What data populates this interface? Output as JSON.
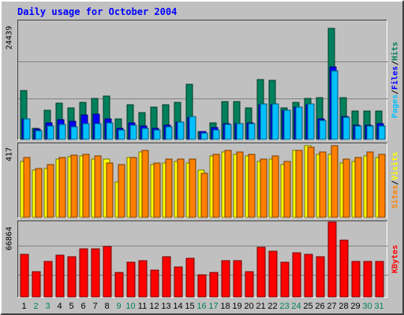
{
  "title": "Daily usage for October 2004",
  "colors": {
    "background": "#c0c0c0",
    "title": "#0000ff",
    "gridline": "#808080",
    "hits": "#00805c",
    "files": "#0000ff",
    "pages": "#00c0ff",
    "sites": "#ff8000",
    "visits": "#ffff00",
    "kbytes": "#ff0000",
    "weekday_label": "#000000",
    "weekend_label": "#00805c"
  },
  "y_max_labels": {
    "hits": "24439",
    "sites": "417",
    "kbytes": "66864"
  },
  "legends": {
    "pages": "Pages",
    "files": "Files",
    "hits": "Hits",
    "sites": "Sites",
    "visits": "Visits",
    "kbytes": "KBytes",
    "separator": " / "
  },
  "chart_data": [
    {
      "type": "bar",
      "title": "Daily usage for October 2004",
      "categories": [
        "1",
        "2",
        "3",
        "4",
        "5",
        "6",
        "7",
        "8",
        "9",
        "10",
        "11",
        "12",
        "13",
        "14",
        "15",
        "16",
        "17",
        "18",
        "19",
        "20",
        "21",
        "22",
        "23",
        "24",
        "25",
        "26",
        "27",
        "28",
        "29",
        "30",
        "31"
      ],
      "weekend_days": [
        "2",
        "3",
        "9",
        "10",
        "16",
        "17",
        "23",
        "24",
        "30",
        "31"
      ],
      "ylim": [
        0,
        24439
      ],
      "grid": true,
      "legend_position": "right",
      "series": [
        {
          "name": "Hits",
          "values": [
            10100,
            2200,
            6100,
            7500,
            6500,
            7700,
            8400,
            8900,
            4300,
            7100,
            5500,
            6600,
            7100,
            7700,
            11400,
            1600,
            3500,
            7800,
            7800,
            6500,
            12400,
            12300,
            6500,
            7600,
            8400,
            8600,
            23000,
            8600,
            5900,
            5900,
            5800
          ]
        },
        {
          "name": "Files",
          "values": [
            4300,
            2100,
            3500,
            4000,
            3800,
            5000,
            5200,
            4200,
            2200,
            3500,
            2800,
            2200,
            3000,
            3600,
            4600,
            1600,
            2400,
            3300,
            3300,
            3500,
            7100,
            7200,
            6000,
            6600,
            7200,
            4200,
            15000,
            4700,
            3000,
            3000,
            3200
          ]
        },
        {
          "name": "Pages",
          "values": [
            4300,
            1800,
            2700,
            3100,
            2600,
            3200,
            3300,
            3400,
            1900,
            2900,
            2200,
            2000,
            2600,
            3600,
            4700,
            1300,
            2000,
            3100,
            3200,
            3200,
            7300,
            7300,
            6000,
            6700,
            7300,
            3900,
            14100,
            4600,
            2700,
            2700,
            2800
          ]
        }
      ]
    },
    {
      "type": "bar",
      "categories": [
        "1",
        "2",
        "3",
        "4",
        "5",
        "6",
        "7",
        "8",
        "9",
        "10",
        "11",
        "12",
        "13",
        "14",
        "15",
        "16",
        "17",
        "18",
        "19",
        "20",
        "21",
        "22",
        "23",
        "24",
        "25",
        "26",
        "27",
        "28",
        "29",
        "30",
        "31"
      ],
      "ylim": [
        0,
        417
      ],
      "grid": false,
      "legend_position": "right",
      "series": [
        {
          "name": "Visits",
          "values": [
            320,
            270,
            280,
            330,
            345,
            350,
            330,
            330,
            200,
            340,
            370,
            300,
            310,
            320,
            310,
            270,
            350,
            370,
            360,
            350,
            320,
            330,
            300,
            380,
            410,
            360,
            360,
            310,
            320,
            350,
            340
          ]
        },
        {
          "name": "Sites",
          "values": [
            340,
            280,
            300,
            340,
            355,
            360,
            350,
            310,
            300,
            340,
            380,
            310,
            330,
            330,
            330,
            250,
            360,
            380,
            370,
            360,
            330,
            350,
            320,
            380,
            400,
            370,
            410,
            330,
            340,
            370,
            360
          ]
        }
      ]
    },
    {
      "type": "bar",
      "categories": [
        "1",
        "2",
        "3",
        "4",
        "5",
        "6",
        "7",
        "8",
        "9",
        "10",
        "11",
        "12",
        "13",
        "14",
        "15",
        "16",
        "17",
        "18",
        "19",
        "20",
        "21",
        "22",
        "23",
        "24",
        "25",
        "26",
        "27",
        "28",
        "29",
        "30",
        "31"
      ],
      "ylim": [
        0,
        66864
      ],
      "grid": true,
      "legend_position": "right",
      "series": [
        {
          "name": "KBytes",
          "values": [
            37800,
            22400,
            31700,
            37000,
            36100,
            43200,
            42700,
            45200,
            22100,
            31200,
            32200,
            23800,
            36000,
            26700,
            34500,
            19400,
            21700,
            32300,
            32300,
            22600,
            44500,
            40800,
            31200,
            39500,
            38300,
            35900,
            66800,
            50800,
            31400,
            31400,
            31500
          ]
        }
      ]
    }
  ]
}
